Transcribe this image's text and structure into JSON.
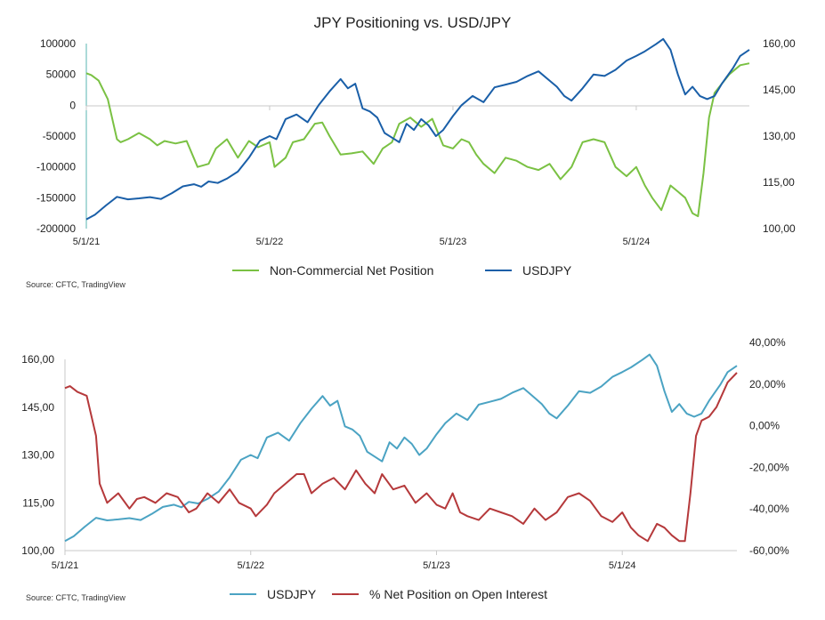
{
  "title": "JPY Positioning vs. USD/JPY",
  "chart_data": [
    {
      "type": "line",
      "title": "JPY Positioning vs. USD/JPY",
      "source": "Source: CFTC, TradingView",
      "x_ticks": [
        "5/1/21",
        "5/1/22",
        "5/1/23",
        "5/1/24"
      ],
      "x_range": [
        2021.333,
        2024.95
      ],
      "y_left": {
        "ticks": [
          "100000",
          "50000",
          "0",
          "-50000",
          "-100000",
          "-150000",
          "-200000"
        ],
        "ylim": [
          -200000,
          100000
        ]
      },
      "y_right": {
        "ticks": [
          "160,00",
          "145,00",
          "130,00",
          "115,00",
          "100,00"
        ],
        "ylim": [
          100,
          160
        ]
      },
      "series": [
        {
          "name": "Non-Commercial Net Position",
          "axis": "left",
          "color": "#7ac143",
          "x": [
            2021.333,
            2021.36,
            2021.4,
            2021.45,
            2021.5,
            2021.52,
            2021.56,
            2021.62,
            2021.68,
            2021.72,
            2021.76,
            2021.82,
            2021.88,
            2021.94,
            2022.0,
            2022.04,
            2022.1,
            2022.16,
            2022.22,
            2022.27,
            2022.333,
            2022.36,
            2022.42,
            2022.46,
            2022.52,
            2022.58,
            2022.62,
            2022.66,
            2022.72,
            2022.78,
            2022.84,
            2022.9,
            2022.95,
            2023.0,
            2023.04,
            2023.1,
            2023.16,
            2023.22,
            2023.28,
            2023.333,
            2023.38,
            2023.42,
            2023.46,
            2023.5,
            2023.56,
            2023.62,
            2023.68,
            2023.74,
            2023.8,
            2023.86,
            2023.92,
            2023.98,
            2024.04,
            2024.1,
            2024.16,
            2024.22,
            2024.28,
            2024.333,
            2024.38,
            2024.42,
            2024.47,
            2024.52,
            2024.56,
            2024.6,
            2024.64,
            2024.67,
            2024.7,
            2024.73,
            2024.76,
            2024.8,
            2024.84,
            2024.9,
            2024.95
          ],
          "values": [
            52000,
            49000,
            40000,
            10000,
            -55000,
            -60000,
            -55000,
            -45000,
            -55000,
            -65000,
            -58000,
            -62000,
            -58000,
            -100000,
            -95000,
            -70000,
            -55000,
            -85000,
            -58000,
            -68000,
            -60000,
            -100000,
            -85000,
            -60000,
            -55000,
            -30000,
            -28000,
            -50000,
            -80000,
            -78000,
            -75000,
            -95000,
            -70000,
            -60000,
            -30000,
            -20000,
            -35000,
            -22000,
            -65000,
            -70000,
            -55000,
            -60000,
            -80000,
            -95000,
            -110000,
            -85000,
            -90000,
            -100000,
            -105000,
            -95000,
            -120000,
            -100000,
            -60000,
            -55000,
            -60000,
            -100000,
            -115000,
            -100000,
            -130000,
            -150000,
            -170000,
            -130000,
            -140000,
            -150000,
            -175000,
            -180000,
            -110000,
            -20000,
            20000,
            35000,
            50000,
            65000,
            68000
          ]
        },
        {
          "name": "USDJPY",
          "axis": "right",
          "color": "#1a5fa8",
          "x": [
            2021.333,
            2021.38,
            2021.44,
            2021.5,
            2021.56,
            2021.62,
            2021.68,
            2021.74,
            2021.8,
            2021.86,
            2021.92,
            2021.96,
            2022.0,
            2022.05,
            2022.1,
            2022.16,
            2022.22,
            2022.28,
            2022.333,
            2022.37,
            2022.42,
            2022.48,
            2022.54,
            2022.6,
            2022.66,
            2022.72,
            2022.76,
            2022.8,
            2022.84,
            2022.88,
            2022.92,
            2022.96,
            2023.0,
            2023.04,
            2023.08,
            2023.12,
            2023.16,
            2023.2,
            2023.24,
            2023.28,
            2023.333,
            2023.38,
            2023.44,
            2023.5,
            2023.56,
            2023.62,
            2023.68,
            2023.74,
            2023.8,
            2023.86,
            2023.9,
            2023.94,
            2023.98,
            2024.04,
            2024.1,
            2024.16,
            2024.22,
            2024.28,
            2024.333,
            2024.38,
            2024.44,
            2024.48,
            2024.52,
            2024.56,
            2024.6,
            2024.64,
            2024.68,
            2024.72,
            2024.76,
            2024.8,
            2024.86,
            2024.9,
            2024.95
          ],
          "values": [
            103,
            104.5,
            107.5,
            110.3,
            109.5,
            109.8,
            110.2,
            109.6,
            111.5,
            113.7,
            114.4,
            113.6,
            115.3,
            114.8,
            116.2,
            118.5,
            123,
            128.5,
            130,
            129,
            135.5,
            137,
            134.5,
            140,
            144.5,
            148.5,
            145.5,
            147,
            139,
            138,
            136,
            131,
            129.5,
            128,
            134,
            132,
            135.5,
            133.5,
            130,
            132,
            136.5,
            140,
            143,
            141,
            145.8,
            146.7,
            147.6,
            149.5,
            151,
            148,
            146,
            143,
            141.5,
            145.5,
            150,
            149.5,
            151.5,
            154.5,
            156,
            157.5,
            159.8,
            161.5,
            158,
            150,
            143.5,
            146,
            143,
            142,
            143,
            147,
            152,
            156,
            158
          ]
        }
      ]
    },
    {
      "type": "line",
      "source": "Source: CFTC, TradingView",
      "x_ticks": [
        "5/1/21",
        "5/1/22",
        "5/1/23",
        "5/1/24"
      ],
      "x_range": [
        2021.333,
        2024.95
      ],
      "y_left": {
        "ticks": [
          "160,00",
          "145,00",
          "130,00",
          "115,00",
          "100,00"
        ],
        "ylim": [
          100,
          160
        ]
      },
      "y_right": {
        "ticks": [
          "40,00%",
          "20,00%",
          "0,00%",
          "-20,00%",
          "-40,00%",
          "-60,00%"
        ],
        "ylim": [
          -60,
          40
        ]
      },
      "series": [
        {
          "name": "USDJPY",
          "axis": "left",
          "color": "#4ba3c3",
          "x": [
            2021.333,
            2021.38,
            2021.44,
            2021.5,
            2021.56,
            2021.62,
            2021.68,
            2021.74,
            2021.8,
            2021.86,
            2021.92,
            2021.96,
            2022.0,
            2022.05,
            2022.1,
            2022.16,
            2022.22,
            2022.28,
            2022.333,
            2022.37,
            2022.42,
            2022.48,
            2022.54,
            2022.6,
            2022.66,
            2022.72,
            2022.76,
            2022.8,
            2022.84,
            2022.88,
            2022.92,
            2022.96,
            2023.0,
            2023.04,
            2023.08,
            2023.12,
            2023.16,
            2023.2,
            2023.24,
            2023.28,
            2023.333,
            2023.38,
            2023.44,
            2023.5,
            2023.56,
            2023.62,
            2023.68,
            2023.74,
            2023.8,
            2023.86,
            2023.9,
            2023.94,
            2023.98,
            2024.04,
            2024.1,
            2024.16,
            2024.22,
            2024.28,
            2024.333,
            2024.38,
            2024.44,
            2024.48,
            2024.52,
            2024.56,
            2024.6,
            2024.64,
            2024.68,
            2024.72,
            2024.76,
            2024.8,
            2024.86,
            2024.9,
            2024.95
          ],
          "values": [
            103,
            104.5,
            107.5,
            110.3,
            109.5,
            109.8,
            110.2,
            109.6,
            111.5,
            113.7,
            114.4,
            113.6,
            115.3,
            114.8,
            116.2,
            118.5,
            123,
            128.5,
            130,
            129,
            135.5,
            137,
            134.5,
            140,
            144.5,
            148.5,
            145.5,
            147,
            139,
            138,
            136,
            131,
            129.5,
            128,
            134,
            132,
            135.5,
            133.5,
            130,
            132,
            136.5,
            140,
            143,
            141,
            145.8,
            146.7,
            147.6,
            149.5,
            151,
            148,
            146,
            143,
            141.5,
            145.5,
            150,
            149.5,
            151.5,
            154.5,
            156,
            157.5,
            159.8,
            161.5,
            158,
            150,
            143.5,
            146,
            143,
            142,
            143,
            147,
            152,
            156,
            158
          ]
        },
        {
          "name": "% Net Position on Open Interest",
          "axis": "right",
          "color": "#b5393b",
          "x": [
            2021.333,
            2021.36,
            2021.4,
            2021.45,
            2021.5,
            2021.52,
            2021.56,
            2021.62,
            2021.68,
            2021.72,
            2021.76,
            2021.82,
            2021.88,
            2021.94,
            2022.0,
            2022.04,
            2022.1,
            2022.16,
            2022.22,
            2022.27,
            2022.333,
            2022.36,
            2022.42,
            2022.46,
            2022.52,
            2022.58,
            2022.62,
            2022.66,
            2022.72,
            2022.78,
            2022.84,
            2022.9,
            2022.95,
            2023.0,
            2023.04,
            2023.1,
            2023.16,
            2023.22,
            2023.28,
            2023.333,
            2023.38,
            2023.42,
            2023.46,
            2023.5,
            2023.56,
            2023.62,
            2023.68,
            2023.74,
            2023.8,
            2023.86,
            2023.92,
            2023.98,
            2024.04,
            2024.1,
            2024.16,
            2024.22,
            2024.28,
            2024.333,
            2024.38,
            2024.42,
            2024.47,
            2024.52,
            2024.56,
            2024.6,
            2024.64,
            2024.67,
            2024.7,
            2024.73,
            2024.76,
            2024.8,
            2024.84,
            2024.9,
            2024.95
          ],
          "values": [
            25,
            26,
            23,
            21,
            0,
            -25,
            -35,
            -30,
            -38,
            -33,
            -32,
            -35,
            -30,
            -32,
            -40,
            -38,
            -30,
            -35,
            -28,
            -35,
            -38,
            -42,
            -36,
            -30,
            -25,
            -20,
            -20,
            -30,
            -25,
            -22,
            -28,
            -18,
            -25,
            -30,
            -20,
            -28,
            -26,
            -35,
            -30,
            -36,
            -38,
            -30,
            -40,
            -42,
            -44,
            -38,
            -40,
            -42,
            -46,
            -38,
            -44,
            -40,
            -32,
            -30,
            -34,
            -42,
            -45,
            -40,
            -48,
            -52,
            -55,
            -46,
            -48,
            -52,
            -55,
            -55,
            -30,
            0,
            8,
            10,
            15,
            28,
            33
          ]
        }
      ]
    }
  ]
}
